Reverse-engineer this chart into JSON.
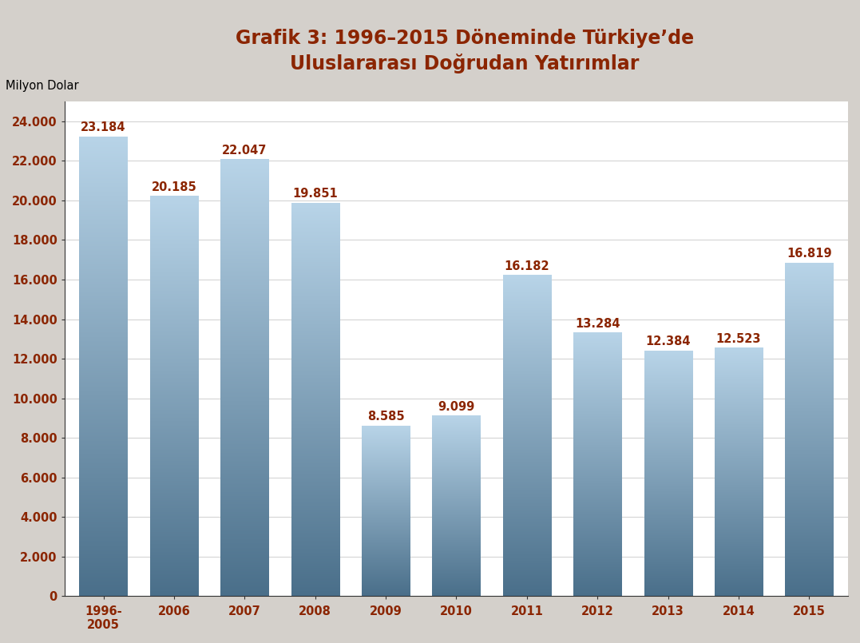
{
  "title_line1": "Grafik 3: 1996–2015 Döneminde Türkiye’de",
  "title_line2": "Uluslararası Doğrudan Yatırımlar",
  "ylabel": "Milyon Dolar",
  "categories": [
    "1996-\n2005",
    "2006",
    "2007",
    "2008",
    "2009",
    "2010",
    "2011",
    "2012",
    "2013",
    "2014",
    "2015"
  ],
  "values": [
    23184,
    20185,
    22047,
    19851,
    8585,
    9099,
    16182,
    13284,
    12384,
    12523,
    16819
  ],
  "labels": [
    "23.184",
    "20.185",
    "22.047",
    "19.851",
    "8.585",
    "9.099",
    "16.182",
    "13.284",
    "12.384",
    "12.523",
    "16.819"
  ],
  "bar_color_top": "#b8d4e8",
  "bar_color_bottom": "#4a6f8a",
  "title_color": "#8b2500",
  "label_color": "#8b2500",
  "tick_color": "#8b2500",
  "background_color": "#d4d0cb",
  "plot_background": "#ffffff",
  "ylim": [
    0,
    25000
  ],
  "yticks": [
    0,
    2000,
    4000,
    6000,
    8000,
    10000,
    12000,
    14000,
    16000,
    18000,
    20000,
    22000,
    24000
  ],
  "ytick_labels": [
    "0",
    "2.000",
    "4.000",
    "6.000",
    "8.000",
    "10.000",
    "12.000",
    "14.000",
    "16.000",
    "18.000",
    "20.000",
    "22.000",
    "24.000"
  ],
  "grid_color": "#d4d4d4",
  "title_fontsize": 17,
  "label_fontsize": 10.5,
  "tick_fontsize": 10.5,
  "ylabel_fontsize": 10.5,
  "bar_width": 0.68
}
